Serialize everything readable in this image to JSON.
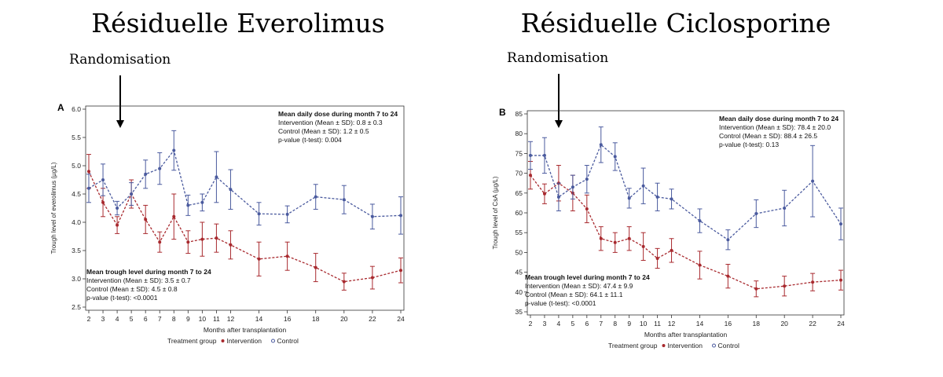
{
  "slide": {
    "title_left": "Résiduelle Everolimus",
    "title_right": "Résiduelle Ciclosporine",
    "randomisation_left": "Randomisation",
    "randomisation_right": "Randomisation"
  },
  "colors": {
    "intervention": "#a8292e",
    "control": "#4a5a9e",
    "axis": "#333333"
  },
  "chart_data": [
    {
      "type": "line",
      "panel_label": "A",
      "xlabel": "Months after transplantation",
      "ylabel": "Trough level of everolimus (µg/L)",
      "x": [
        2,
        3,
        4,
        5,
        6,
        7,
        8,
        9,
        10,
        11,
        12,
        14,
        16,
        18,
        20,
        22,
        24
      ],
      "x_tick_labels": [
        "2",
        "3",
        "4",
        "5",
        "6",
        "7",
        "8",
        "9",
        "10",
        "11",
        "12",
        "14",
        "16",
        "18",
        "20",
        "22",
        "24"
      ],
      "ylim": [
        2.5,
        6.0
      ],
      "yticks": [
        "2.5",
        "3.0",
        "3.5",
        "4.0",
        "4.5",
        "5.0",
        "5.5",
        "6.0"
      ],
      "series": [
        {
          "name": "Intervention",
          "values": [
            4.9,
            4.35,
            3.95,
            4.5,
            4.05,
            3.65,
            4.1,
            3.65,
            3.7,
            3.72,
            3.6,
            3.35,
            3.4,
            3.2,
            2.95,
            3.02,
            3.15
          ],
          "error": [
            0.3,
            0.25,
            0.15,
            0.25,
            0.25,
            0.18,
            0.4,
            0.2,
            0.3,
            0.25,
            0.25,
            0.3,
            0.25,
            0.25,
            0.15,
            0.2,
            0.22
          ]
        },
        {
          "name": "Control",
          "values": [
            4.6,
            4.75,
            4.25,
            4.5,
            4.85,
            4.95,
            5.27,
            4.3,
            4.35,
            4.8,
            4.58,
            4.15,
            4.14,
            4.45,
            4.4,
            4.1,
            4.12
          ],
          "error": [
            0.25,
            0.28,
            0.12,
            0.2,
            0.25,
            0.28,
            0.35,
            0.18,
            0.15,
            0.45,
            0.35,
            0.2,
            0.15,
            0.22,
            0.25,
            0.22,
            0.33
          ]
        }
      ],
      "dose_box": {
        "title": "Mean daily dose during month 7 to 24",
        "lines": [
          "Intervention (Mean ± SD): 0.8 ± 0.3",
          "Control (Mean ± SD): 1.2 ± 0.5",
          "p-value (t-test): 0.004"
        ]
      },
      "trough_box": {
        "title": "Mean trough level during month 7 to 24",
        "lines": [
          "Intervention (Mean ± SD): 3.5 ± 0.7",
          "Control (Mean ± SD): 4.5 ± 0.8",
          "p-value (t-test): <0.0001"
        ]
      },
      "legend": {
        "title": "Treatment group",
        "items": [
          "Intervention",
          "Control"
        ],
        "placement": "bottom"
      }
    },
    {
      "type": "line",
      "panel_label": "B",
      "xlabel": "Months after transplantation",
      "ylabel": "Trough level of CsA (µg/L)",
      "x": [
        2,
        3,
        4,
        5,
        6,
        7,
        8,
        9,
        10,
        11,
        12,
        14,
        16,
        18,
        20,
        22,
        24
      ],
      "x_tick_labels": [
        "2",
        "3",
        "4",
        "5",
        "6",
        "7",
        "8",
        "9",
        "10",
        "11",
        "12",
        "14",
        "16",
        "18",
        "20",
        "22",
        "24"
      ],
      "ylim": [
        35,
        85
      ],
      "yticks": [
        "35",
        "40",
        "45",
        "50",
        "55",
        "60",
        "65",
        "70",
        "75",
        "80",
        "85"
      ],
      "series": [
        {
          "name": "Intervention",
          "values": [
            69.5,
            64.8,
            67.5,
            65.0,
            61.0,
            53.5,
            52.5,
            53.5,
            51.5,
            48.5,
            50.5,
            46.8,
            44.0,
            40.8,
            41.5,
            42.5,
            43.0
          ],
          "error": [
            3.5,
            2.5,
            4.5,
            4.5,
            3.5,
            3.0,
            2.5,
            3.0,
            3.5,
            2.5,
            3.0,
            3.5,
            3.0,
            2.0,
            2.5,
            2.2,
            2.5
          ]
        },
        {
          "name": "Control",
          "values": [
            74.5,
            74.5,
            64.0,
            66.5,
            68.5,
            77.2,
            74.2,
            63.7,
            66.8,
            64.0,
            63.5,
            58.0,
            53.2,
            59.8,
            61.2,
            68.0,
            57.2
          ],
          "error": [
            3.5,
            4.5,
            3.5,
            3.0,
            3.5,
            4.5,
            3.5,
            2.5,
            4.5,
            3.5,
            2.5,
            3.0,
            2.5,
            3.5,
            4.5,
            9.0,
            4.0
          ]
        }
      ],
      "dose_box": {
        "title": "Mean daily dose during month 7 to 24",
        "lines": [
          "Intervention (Mean ± SD): 78.4 ± 20.0",
          "Control (Mean ± SD): 88.4 ± 26.5",
          "p-value (t-test): 0.13"
        ]
      },
      "trough_box": {
        "title": "Mean trough level during month 7 to 24",
        "lines": [
          "Intervention (Mean ± SD): 47.4 ± 9.9",
          "Control (Mean ± SD): 64.1 ± 11.1",
          "p-value (t-test): <0.0001"
        ]
      },
      "legend": {
        "title": "Treatment group",
        "items": [
          "Intervention",
          "Control"
        ],
        "placement": "bottom"
      }
    }
  ]
}
